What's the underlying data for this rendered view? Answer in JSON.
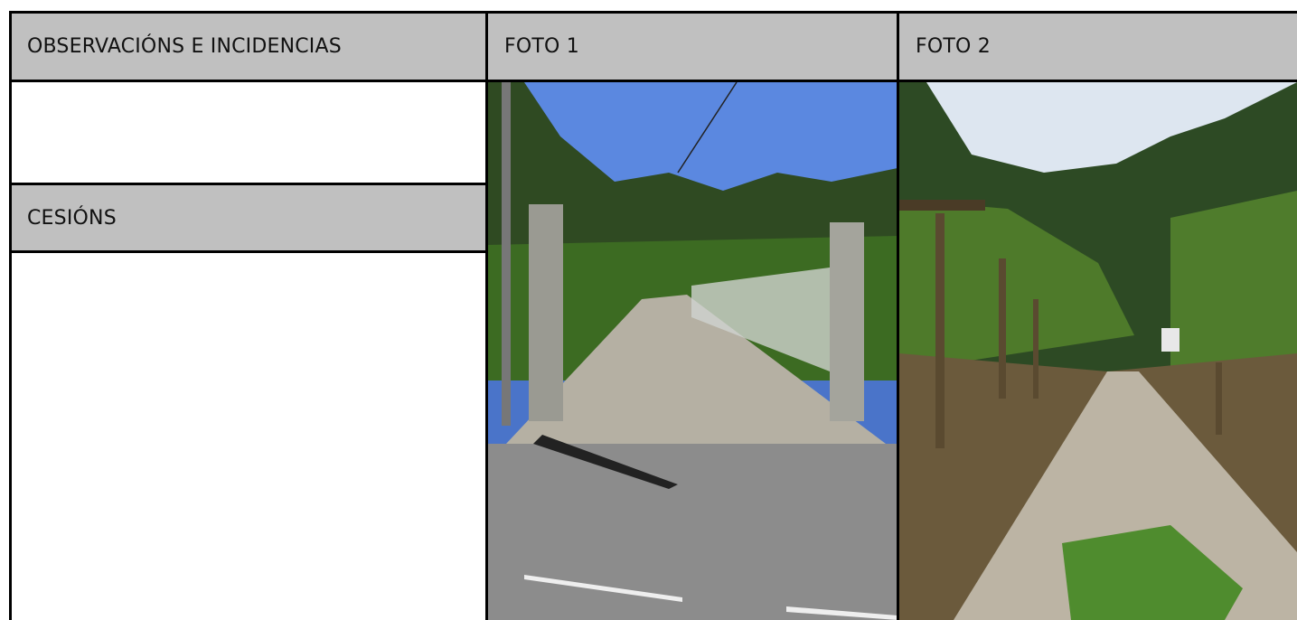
{
  "table": {
    "headers": [
      "OBSERVACIÓNS E INCIDENCIAS",
      "FOTO 1",
      "FOTO 2"
    ],
    "side_label": "CESIÓNS"
  }
}
